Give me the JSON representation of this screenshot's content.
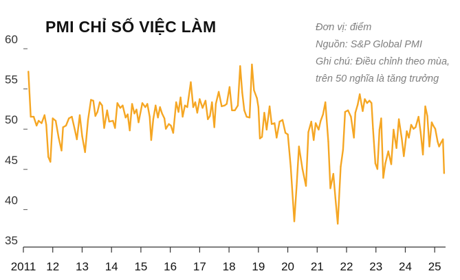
{
  "chart_data": {
    "type": "line",
    "title": "PMI CHỈ SỐ VIỆC LÀM",
    "notes": {
      "unit": "Đơn vị: điểm",
      "source": "Nguồn: S&P Global PMI",
      "note_line1": "Ghi chú: Điều chỉnh theo mùa,",
      "note_line2": "trên 50 nghĩa là tăng trưởng"
    },
    "xlabel": "",
    "ylabel": "",
    "ylim": [
      35,
      60
    ],
    "xlim": [
      2011.0,
      2025.3
    ],
    "y_ticks": [
      {
        "value": 60,
        "label": "60"
      },
      {
        "value": 55,
        "label": "55"
      },
      {
        "value": 50,
        "label": "50"
      },
      {
        "value": 45,
        "label": "45"
      },
      {
        "value": 40,
        "label": "40"
      },
      {
        "value": 35,
        "label": "35"
      }
    ],
    "x_ticks": [
      {
        "value": 2011,
        "label": "2011"
      },
      {
        "value": 2012,
        "label": "12"
      },
      {
        "value": 2013,
        "label": "13"
      },
      {
        "value": 2014,
        "label": "14"
      },
      {
        "value": 2015,
        "label": "15"
      },
      {
        "value": 2016,
        "label": "16"
      },
      {
        "value": 2017,
        "label": "17"
      },
      {
        "value": 2018,
        "label": "18"
      },
      {
        "value": 2019,
        "label": "19"
      },
      {
        "value": 2020,
        "label": "20"
      },
      {
        "value": 2021,
        "label": "21"
      },
      {
        "value": 2022,
        "label": "22"
      },
      {
        "value": 2023,
        "label": "23"
      },
      {
        "value": 2024,
        "label": "24"
      },
      {
        "value": 2025,
        "label": "25"
      }
    ],
    "grid": false,
    "series": [
      {
        "name": "PMI chỉ số việc làm",
        "color": "#F5A623",
        "points": [
          [
            2011.17,
            56.8
          ],
          [
            2011.25,
            51.2
          ],
          [
            2011.35,
            51.2
          ],
          [
            2011.45,
            50.1
          ],
          [
            2011.52,
            50.7
          ],
          [
            2011.62,
            50.4
          ],
          [
            2011.72,
            51.4
          ],
          [
            2011.78,
            50.2
          ],
          [
            2011.85,
            46.2
          ],
          [
            2011.92,
            45.6
          ],
          [
            2012.0,
            51.0
          ],
          [
            2012.1,
            50.7
          ],
          [
            2012.2,
            48.6
          ],
          [
            2012.3,
            47.0
          ],
          [
            2012.35,
            49.9
          ],
          [
            2012.45,
            50.1
          ],
          [
            2012.55,
            51.0
          ],
          [
            2012.65,
            51.2
          ],
          [
            2012.75,
            49.6
          ],
          [
            2012.82,
            48.4
          ],
          [
            2012.92,
            51.4
          ],
          [
            2013.0,
            48.8
          ],
          [
            2013.1,
            46.8
          ],
          [
            2013.2,
            50.8
          ],
          [
            2013.3,
            53.3
          ],
          [
            2013.38,
            53.2
          ],
          [
            2013.45,
            51.3
          ],
          [
            2013.52,
            51.8
          ],
          [
            2013.6,
            53.0
          ],
          [
            2013.68,
            52.6
          ],
          [
            2013.75,
            49.8
          ],
          [
            2013.85,
            52.0
          ],
          [
            2013.92,
            50.6
          ],
          [
            2014.05,
            50.7
          ],
          [
            2014.12,
            49.8
          ],
          [
            2014.2,
            52.9
          ],
          [
            2014.3,
            52.3
          ],
          [
            2014.38,
            52.6
          ],
          [
            2014.48,
            51.1
          ],
          [
            2014.55,
            51.5
          ],
          [
            2014.62,
            49.5
          ],
          [
            2014.7,
            52.8
          ],
          [
            2014.78,
            51.6
          ],
          [
            2014.85,
            52.1
          ],
          [
            2014.92,
            50.5
          ],
          [
            2015.05,
            52.9
          ],
          [
            2015.15,
            52.4
          ],
          [
            2015.22,
            52.8
          ],
          [
            2015.3,
            51.2
          ],
          [
            2015.35,
            48.3
          ],
          [
            2015.42,
            50.9
          ],
          [
            2015.5,
            52.6
          ],
          [
            2015.58,
            51.1
          ],
          [
            2015.65,
            52.4
          ],
          [
            2015.72,
            51.6
          ],
          [
            2015.8,
            51.0
          ],
          [
            2015.85,
            49.7
          ],
          [
            2015.95,
            50.3
          ],
          [
            2016.02,
            50.1
          ],
          [
            2016.1,
            49.2
          ],
          [
            2016.2,
            53.0
          ],
          [
            2016.28,
            51.8
          ],
          [
            2016.35,
            53.6
          ],
          [
            2016.42,
            51.2
          ],
          [
            2016.5,
            52.6
          ],
          [
            2016.58,
            52.4
          ],
          [
            2016.7,
            55.5
          ],
          [
            2016.78,
            52.4
          ],
          [
            2016.85,
            53.0
          ],
          [
            2016.92,
            51.7
          ],
          [
            2017.0,
            53.4
          ],
          [
            2017.1,
            52.3
          ],
          [
            2017.2,
            53.2
          ],
          [
            2017.28,
            50.9
          ],
          [
            2017.35,
            51.3
          ],
          [
            2017.42,
            53.0
          ],
          [
            2017.5,
            49.9
          ],
          [
            2017.55,
            52.8
          ],
          [
            2017.65,
            54.3
          ],
          [
            2017.75,
            52.5
          ],
          [
            2017.85,
            52.6
          ],
          [
            2017.92,
            52.8
          ],
          [
            2018.02,
            54.9
          ],
          [
            2018.1,
            52.0
          ],
          [
            2018.2,
            52.0
          ],
          [
            2018.3,
            52.6
          ],
          [
            2018.38,
            57.5
          ],
          [
            2018.45,
            54.2
          ],
          [
            2018.52,
            52.0
          ],
          [
            2018.6,
            51.2
          ],
          [
            2018.7,
            51.1
          ],
          [
            2018.78,
            57.7
          ],
          [
            2018.85,
            54.5
          ],
          [
            2018.95,
            53.5
          ],
          [
            2019.0,
            52.4
          ],
          [
            2019.05,
            48.5
          ],
          [
            2019.12,
            48.7
          ],
          [
            2019.2,
            51.7
          ],
          [
            2019.28,
            49.6
          ],
          [
            2019.38,
            52.5
          ],
          [
            2019.45,
            50.3
          ],
          [
            2019.55,
            50.4
          ],
          [
            2019.62,
            48.6
          ],
          [
            2019.72,
            50.6
          ],
          [
            2019.82,
            50.8
          ],
          [
            2019.92,
            49.2
          ],
          [
            2020.0,
            49.0
          ],
          [
            2020.1,
            45.0
          ],
          [
            2020.22,
            38.2
          ],
          [
            2020.3,
            42.6
          ],
          [
            2020.38,
            47.5
          ],
          [
            2020.5,
            44.7
          ],
          [
            2020.62,
            42.6
          ],
          [
            2020.7,
            49.3
          ],
          [
            2020.8,
            50.6
          ],
          [
            2020.88,
            48.3
          ],
          [
            2020.95,
            50.4
          ],
          [
            2021.05,
            49.6
          ],
          [
            2021.12,
            50.7
          ],
          [
            2021.2,
            51.5
          ],
          [
            2021.28,
            53.0
          ],
          [
            2021.38,
            48.1
          ],
          [
            2021.45,
            42.3
          ],
          [
            2021.55,
            44.1
          ],
          [
            2021.62,
            41.1
          ],
          [
            2021.7,
            37.9
          ],
          [
            2021.8,
            45.0
          ],
          [
            2021.88,
            47.1
          ],
          [
            2021.95,
            51.8
          ],
          [
            2022.05,
            52.0
          ],
          [
            2022.15,
            51.2
          ],
          [
            2022.25,
            48.6
          ],
          [
            2022.3,
            51.7
          ],
          [
            2022.38,
            52.7
          ],
          [
            2022.45,
            54.0
          ],
          [
            2022.55,
            51.9
          ],
          [
            2022.62,
            53.4
          ],
          [
            2022.7,
            52.9
          ],
          [
            2022.78,
            53.2
          ],
          [
            2022.85,
            52.9
          ],
          [
            2022.9,
            49.7
          ],
          [
            2022.98,
            45.4
          ],
          [
            2023.05,
            44.7
          ],
          [
            2023.12,
            49.6
          ],
          [
            2023.18,
            51.0
          ],
          [
            2023.25,
            43.6
          ],
          [
            2023.32,
            45.4
          ],
          [
            2023.42,
            46.9
          ],
          [
            2023.52,
            45.3
          ],
          [
            2023.6,
            49.6
          ],
          [
            2023.7,
            47.3
          ],
          [
            2023.78,
            50.9
          ],
          [
            2023.88,
            48.5
          ],
          [
            2023.95,
            46.3
          ],
          [
            2024.05,
            49.4
          ],
          [
            2024.12,
            48.6
          ],
          [
            2024.2,
            50.2
          ],
          [
            2024.28,
            49.7
          ],
          [
            2024.35,
            49.9
          ],
          [
            2024.45,
            51.2
          ],
          [
            2024.52,
            49.3
          ],
          [
            2024.6,
            46.5
          ],
          [
            2024.68,
            52.5
          ],
          [
            2024.75,
            51.3
          ],
          [
            2024.82,
            47.5
          ],
          [
            2024.9,
            50.5
          ],
          [
            2024.95,
            50.1
          ],
          [
            2025.02,
            49.7
          ],
          [
            2025.1,
            48.1
          ],
          [
            2025.15,
            47.5
          ],
          [
            2025.22,
            48.0
          ],
          [
            2025.28,
            48.4
          ],
          [
            2025.32,
            44.2
          ]
        ]
      }
    ]
  }
}
